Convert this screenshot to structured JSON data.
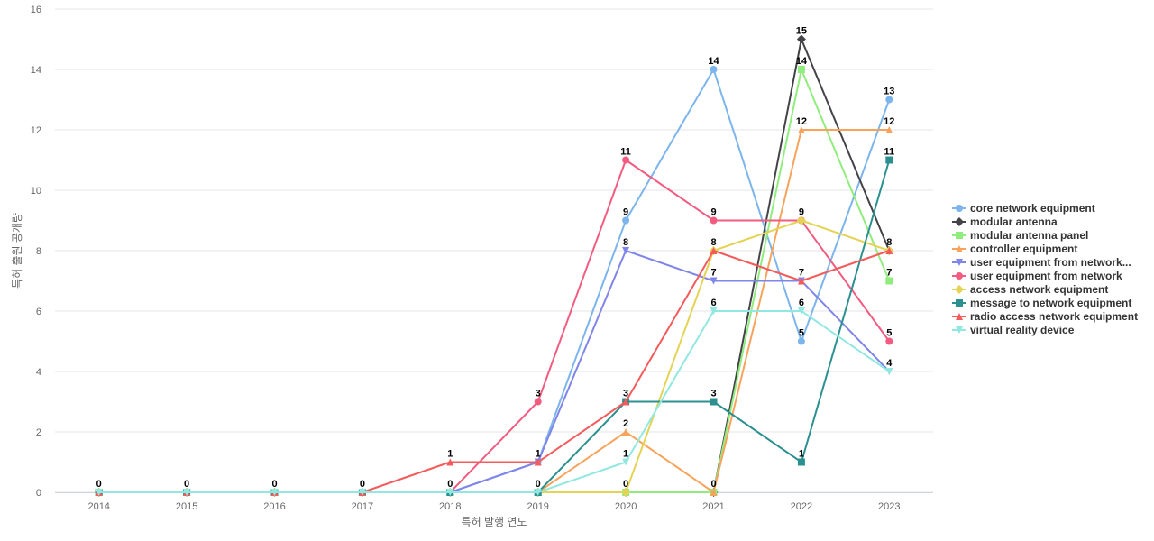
{
  "chart_data": {
    "type": "line",
    "title": "",
    "xlabel": "특허 발행 연도",
    "ylabel": "특허 출원 공개량",
    "ylim": [
      0,
      16
    ],
    "yticks": [
      0,
      2,
      4,
      6,
      8,
      10,
      12,
      14,
      16
    ],
    "grid": true,
    "legend_position": "right",
    "x": [
      "2014",
      "2015",
      "2016",
      "2017",
      "2018",
      "2019",
      "2020",
      "2021",
      "2022",
      "2023"
    ],
    "series": [
      {
        "name": "core network equipment",
        "color": "#7cb5ec",
        "marker": "circle",
        "values": [
          0,
          0,
          0,
          0,
          0,
          1,
          9,
          14,
          5,
          13
        ],
        "labels": [
          null,
          null,
          null,
          null,
          null,
          null,
          9,
          14,
          5,
          13
        ]
      },
      {
        "name": "modular antenna",
        "color": "#434348",
        "marker": "diamond",
        "values": [
          0,
          0,
          0,
          0,
          0,
          0,
          0,
          0,
          15,
          8
        ],
        "labels": [
          null,
          null,
          null,
          null,
          null,
          null,
          null,
          null,
          15,
          null
        ]
      },
      {
        "name": "modular antenna panel",
        "color": "#90ed7d",
        "marker": "square",
        "values": [
          0,
          0,
          0,
          0,
          0,
          0,
          0,
          0,
          14,
          7
        ],
        "labels": [
          null,
          null,
          null,
          null,
          null,
          null,
          0,
          null,
          14,
          7
        ]
      },
      {
        "name": "controller equipment",
        "color": "#f7a35c",
        "marker": "triangle",
        "values": [
          0,
          0,
          0,
          0,
          0,
          0,
          2,
          0,
          12,
          12
        ],
        "labels": [
          null,
          null,
          null,
          null,
          null,
          null,
          2,
          0,
          12,
          12
        ]
      },
      {
        "name": "user equipment from network...",
        "color": "#8085e9",
        "marker": "triangle-down",
        "values": [
          0,
          0,
          0,
          0,
          0,
          1,
          8,
          7,
          7,
          4
        ],
        "labels": [
          null,
          null,
          null,
          null,
          null,
          null,
          8,
          7,
          null,
          null
        ]
      },
      {
        "name": "user equipment from network",
        "color": "#f15c80",
        "marker": "circle",
        "values": [
          0,
          0,
          0,
          0,
          0,
          3,
          11,
          9,
          9,
          5
        ],
        "labels": [
          null,
          null,
          null,
          null,
          null,
          3,
          11,
          9,
          null,
          5
        ]
      },
      {
        "name": "access network equipment",
        "color": "#e4d354",
        "marker": "diamond",
        "values": [
          0,
          0,
          0,
          0,
          0,
          0,
          0,
          8,
          9,
          8
        ],
        "labels": [
          null,
          null,
          null,
          null,
          null,
          null,
          null,
          null,
          9,
          null
        ]
      },
      {
        "name": "message to network equipment",
        "color": "#2b908f",
        "marker": "square",
        "values": [
          0,
          0,
          0,
          0,
          0,
          0,
          3,
          3,
          1,
          11
        ],
        "labels": [
          null,
          null,
          null,
          null,
          null,
          null,
          3,
          3,
          1,
          11
        ]
      },
      {
        "name": "radio access network equipment",
        "color": "#f45b5b",
        "marker": "triangle",
        "values": [
          0,
          0,
          0,
          0,
          1,
          1,
          3,
          8,
          7,
          8
        ],
        "labels": [
          0,
          0,
          0,
          0,
          1,
          1,
          null,
          8,
          7,
          8
        ]
      },
      {
        "name": "virtual reality device",
        "color": "#91e8e1",
        "marker": "triangle-down",
        "values": [
          0,
          0,
          0,
          0,
          0,
          0,
          1,
          6,
          6,
          4
        ],
        "labels": [
          null,
          null,
          null,
          null,
          0,
          0,
          1,
          6,
          6,
          4
        ]
      }
    ]
  }
}
